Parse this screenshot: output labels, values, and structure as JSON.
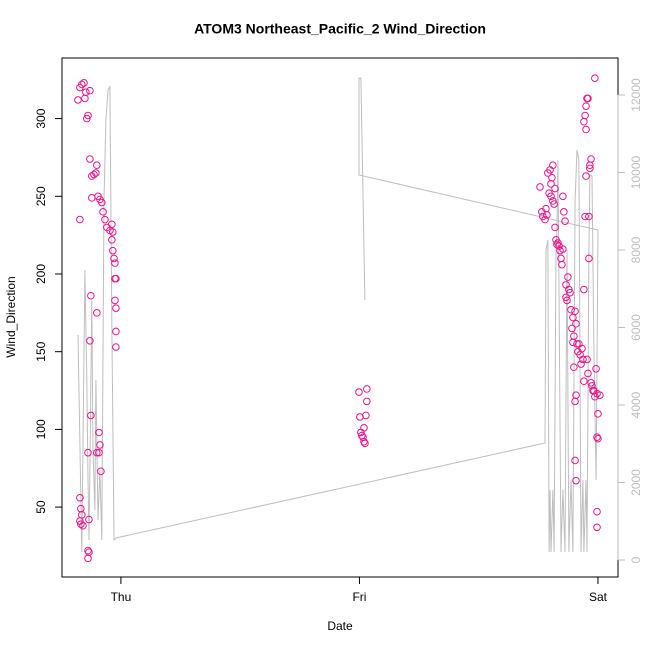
{
  "chart_data": {
    "type": "scatter",
    "title": "ATOM3 Northeast_Pacific_2 Wind_Direction",
    "xlabel": "Date",
    "ylabel": "Wind_Direction",
    "xlim": [
      -0.247,
      2.084
    ],
    "xticks": [
      {
        "value": 0,
        "label": "Thu"
      },
      {
        "value": 1,
        "label": "Fri"
      },
      {
        "value": 2,
        "label": "Sat"
      }
    ],
    "ylim": [
      5,
      339
    ],
    "yticks": [
      50,
      100,
      150,
      200,
      250,
      300
    ],
    "y2lim": [
      -439,
      12955
    ],
    "y2ticks": [
      0,
      2000,
      4000,
      6000,
      8000,
      10000,
      12000
    ],
    "points": {
      "color": "#e8168c",
      "x": [
        -0.18,
        -0.172,
        -0.164,
        -0.155,
        -0.151,
        -0.147,
        -0.143,
        -0.138,
        -0.13,
        -0.172,
        -0.13,
        -0.122,
        -0.113,
        -0.105,
        -0.101,
        -0.122,
        -0.096,
        -0.088,
        -0.08,
        -0.075,
        -0.067,
        -0.059,
        -0.046,
        -0.038,
        -0.034,
        -0.038,
        -0.034,
        -0.029,
        -0.025,
        -0.025,
        -0.021,
        -0.025,
        -0.021,
        -0.021,
        -0.021,
        -0.101,
        -0.126,
        -0.13,
        -0.126,
        -0.092,
        -0.088,
        -0.092,
        -0.084,
        -0.101,
        -0.138,
        -0.172,
        -0.168,
        -0.164,
        -0.172,
        -0.168,
        -0.159,
        -0.134,
        -0.138,
        -0.134,
        -0.138,
        0.998,
        1.002,
        1.006,
        1.01,
        1.015,
        1.019,
        1.023,
        1.031,
        1.031,
        1.027,
        1.019,
        1.757,
        1.765,
        1.769,
        1.778,
        1.782,
        1.786,
        1.79,
        1.799,
        1.803,
        1.807,
        1.811,
        1.795,
        1.803,
        1.811,
        1.816,
        1.82,
        1.82,
        1.824,
        1.828,
        1.832,
        1.837,
        1.841,
        1.845,
        1.849,
        1.853,
        1.853,
        1.857,
        1.862,
        1.866,
        1.866,
        1.87,
        1.874,
        1.878,
        1.883,
        1.887,
        1.891,
        1.895,
        1.899,
        1.904,
        1.908,
        1.912,
        1.916,
        1.92,
        1.925,
        1.929,
        1.933,
        1.937,
        1.895,
        1.899,
        1.904,
        1.908,
        1.904,
        1.908,
        1.941,
        1.941,
        1.946,
        1.95,
        1.954,
        1.958,
        1.962,
        1.962,
        1.966,
        1.971,
        1.975,
        1.979,
        1.983,
        1.987,
        1.992,
        1.996,
        2.0,
        1.996,
        2.0,
        1.996,
        1.996,
        1.941,
        1.946,
        1.95,
        1.954,
        1.95,
        1.958,
        1.987,
        1.971,
        1.966,
        2.008
      ],
      "values": [
        312,
        320,
        322,
        323,
        313,
        317,
        300,
        302,
        318,
        235,
        274,
        263,
        264,
        265,
        270,
        249,
        250,
        248,
        246,
        240,
        235,
        230,
        228,
        232,
        227,
        222,
        215,
        210,
        207,
        197,
        197,
        183,
        178,
        163,
        153,
        175,
        186,
        157,
        109,
        98,
        90,
        85,
        73,
        85,
        85,
        56,
        49,
        45,
        41,
        39,
        38,
        42,
        22,
        21,
        17,
        124,
        108,
        98,
        96,
        95,
        92,
        91,
        126,
        118,
        109,
        101,
        256,
        240,
        237,
        235,
        242,
        238,
        265,
        267,
        258,
        262,
        270,
        252,
        250,
        247,
        245,
        255,
        230,
        222,
        219,
        220,
        218,
        215,
        210,
        206,
        216,
        250,
        240,
        234,
        193,
        185,
        183,
        198,
        190,
        188,
        177,
        165,
        172,
        160,
        176,
        168,
        155,
        150,
        155,
        148,
        142,
        152,
        145,
        156,
        140,
        80,
        122,
        118,
        67,
        131,
        190,
        237,
        263,
        145,
        136,
        210,
        237,
        270,
        130,
        128,
        125,
        125,
        121,
        139,
        123,
        110,
        95,
        94,
        47,
        37,
        298,
        302,
        308,
        313,
        293,
        313,
        326,
        274,
        268,
        122
      ]
    },
    "line": {
      "color": "#bebebe",
      "axis": "y2",
      "x": [
        -0.18,
        -0.164,
        -0.151,
        -0.143,
        -0.138,
        -0.134,
        -0.13,
        -0.122,
        -0.117,
        -0.109,
        -0.105,
        -0.096,
        -0.088,
        -0.08,
        -0.071,
        -0.063,
        -0.054,
        -0.046,
        -0.038,
        -0.029,
        -0.021,
        1.778,
        1.782,
        1.79,
        1.795,
        1.799,
        1.803,
        1.811,
        1.816,
        1.824,
        1.828,
        1.832,
        1.837,
        1.845,
        1.853,
        1.862,
        1.87,
        1.878,
        1.887,
        1.895,
        1.904,
        1.912,
        1.92,
        1.929,
        1.937,
        1.941,
        1.95,
        1.954,
        1.962,
        1.966,
        1.975,
        1.983,
        1.992,
        2.0,
        0.998,
        0.998,
        1.006,
        1.023
      ],
      "values": [
        5806,
        206,
        7484,
        4645,
        2065,
        516,
        2323,
        6710,
        2839,
        1290,
        4645,
        1032,
        2323,
        516,
        9290,
        11355,
        12129,
        12206,
        5935,
        516,
        568,
        3019,
        8000,
        8258,
        206,
        1806,
        206,
        1806,
        206,
        8000,
        8516,
        10323,
        6710,
        206,
        1806,
        206,
        8000,
        206,
        2065,
        206,
        9290,
        10581,
        10323,
        206,
        2065,
        206,
        2065,
        206,
        8000,
        9935,
        9910,
        5419,
        2065,
        8516,
        9935,
        12439,
        12439,
        6710
      ]
    }
  }
}
